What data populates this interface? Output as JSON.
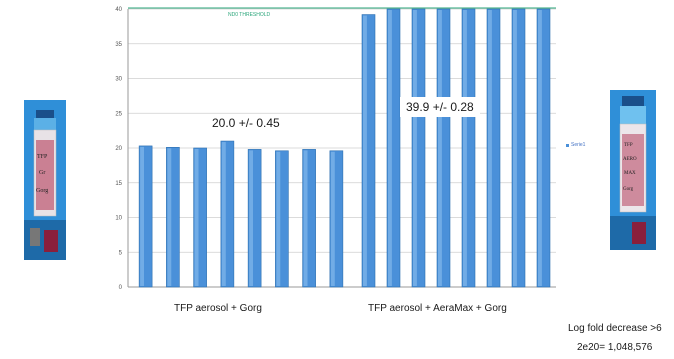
{
  "chart_data": {
    "type": "bar",
    "ylim": [
      0,
      40
    ],
    "yticks": [
      "0",
      "5",
      "10",
      "15",
      "20",
      "25",
      "30",
      "35",
      "40"
    ],
    "categories": [
      "TFP aerosol + Gorg",
      "TFP aerosol + AeraMax + Gorg"
    ],
    "series": [
      {
        "name": "Serie1",
        "groups": [
          [
            20.3,
            20.1,
            20.0,
            21.0,
            19.8,
            19.6,
            19.8,
            19.6
          ],
          [
            39.2,
            40.0,
            40.0,
            40.0,
            40.0,
            40.0,
            40.0,
            40.0
          ]
        ]
      }
    ],
    "threshold": {
      "value": 40,
      "label": "ND0 THRESHOLD",
      "color": "#2aa57a"
    },
    "annotations": [
      "20.0 +/- 0.45",
      "39.9 +/- 0.28"
    ],
    "bar_color": "#4a90d9",
    "legend": {
      "placement": "right",
      "label": "Serie1"
    }
  },
  "footnotes": {
    "line1": "Log fold decrease >6",
    "line2": "2e20= 1,048,576"
  },
  "photos": [
    {
      "name": "sample-tube-left",
      "caption_lines": [
        "TFP",
        "Gr",
        "Gorg"
      ]
    },
    {
      "name": "sample-tube-right",
      "caption_lines": [
        "TFP",
        "AERO",
        "MAX",
        "Gorg"
      ]
    }
  ]
}
